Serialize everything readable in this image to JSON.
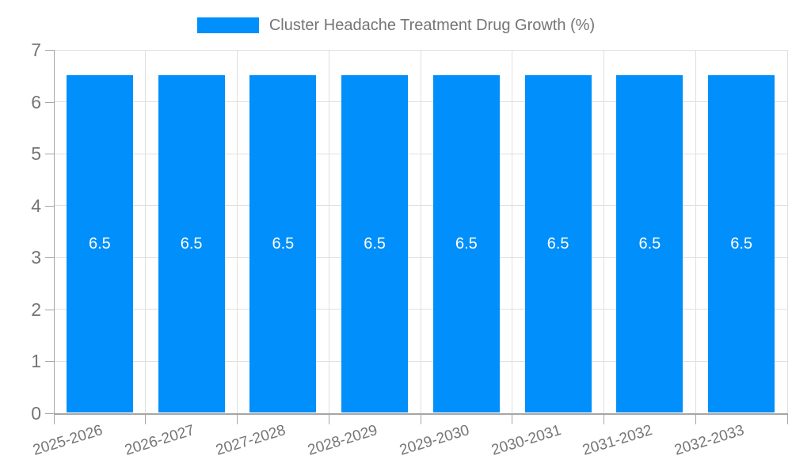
{
  "chart_data": {
    "type": "bar",
    "title": "Cluster Headache Treatment Drug Growth (%)",
    "categories": [
      "2025-2026",
      "2026-2027",
      "2027-2028",
      "2028-2029",
      "2029-2030",
      "2030-2031",
      "2031-2032",
      "2032-2033"
    ],
    "series": [
      {
        "name": "Cluster Headache Treatment Drug Growth (%)",
        "values": [
          6.5,
          6.5,
          6.5,
          6.5,
          6.5,
          6.5,
          6.5,
          6.5
        ]
      }
    ],
    "values": [
      6.5,
      6.5,
      6.5,
      6.5,
      6.5,
      6.5,
      6.5,
      6.5
    ],
    "value_labels": [
      "6.5",
      "6.5",
      "6.5",
      "6.5",
      "6.5",
      "6.5",
      "6.5",
      "6.5"
    ],
    "xlabel": "",
    "ylabel": "",
    "ylim": [
      0,
      7
    ],
    "yticks": [
      0,
      1,
      2,
      3,
      4,
      5,
      6,
      7
    ],
    "grid": true,
    "legend_position": "top",
    "colors": {
      "bar": "#008ffb",
      "value_label": "#ffffff",
      "tick_label": "#757575",
      "legend_label": "#757575",
      "grid": "#e0e0e0",
      "axis": "#a6a6a6"
    }
  }
}
